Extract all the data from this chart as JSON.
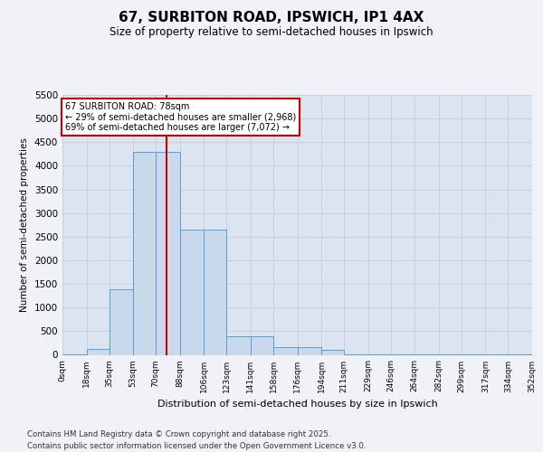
{
  "title": "67, SURBITON ROAD, IPSWICH, IP1 4AX",
  "subtitle": "Size of property relative to semi-detached houses in Ipswich",
  "xlabel": "Distribution of semi-detached houses by size in Ipswich",
  "ylabel": "Number of semi-detached properties",
  "property_label": "67 SURBITON ROAD: 78sqm",
  "smaller_pct": "29%",
  "smaller_count": "2,968",
  "larger_pct": "69%",
  "larger_count": "7,072",
  "property_size_sqm": 78,
  "bin_edges": [
    0,
    18,
    35,
    53,
    70,
    88,
    106,
    123,
    141,
    158,
    176,
    194,
    211,
    229,
    246,
    264,
    282,
    299,
    317,
    334,
    352
  ],
  "bar_heights": [
    5,
    120,
    1380,
    4300,
    4300,
    2650,
    2650,
    400,
    400,
    160,
    160,
    100,
    5,
    5,
    5,
    5,
    5,
    5,
    5,
    5
  ],
  "bar_color": "#c9d9ec",
  "bar_edge_color": "#5b9bd5",
  "grid_color": "#c8d0de",
  "background_color": "#dce4f0",
  "vline_color": "#cc0000",
  "annotation_box_facecolor": "#ffffff",
  "annotation_box_edgecolor": "#cc0000",
  "fig_facecolor": "#f0f2f7",
  "ylim_max": 5500,
  "yticks": [
    0,
    500,
    1000,
    1500,
    2000,
    2500,
    3000,
    3500,
    4000,
    4500,
    5000,
    5500
  ],
  "tick_labels": [
    "0sqm",
    "18sqm",
    "35sqm",
    "53sqm",
    "70sqm",
    "88sqm",
    "106sqm",
    "123sqm",
    "141sqm",
    "158sqm",
    "176sqm",
    "194sqm",
    "211sqm",
    "229sqm",
    "246sqm",
    "264sqm",
    "282sqm",
    "299sqm",
    "317sqm",
    "334sqm",
    "352sqm"
  ],
  "footer": "Contains HM Land Registry data © Crown copyright and database right 2025.\nContains public sector information licensed under the Open Government Licence v3.0."
}
